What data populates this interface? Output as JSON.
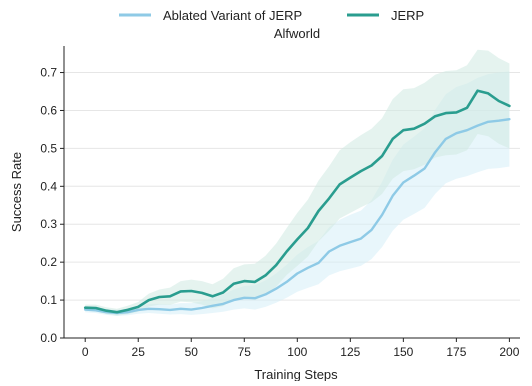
{
  "chart_data": {
    "type": "line",
    "title": "Alfworld",
    "xlabel": "Training Steps",
    "ylabel": "Success Rate",
    "xlim": [
      -10,
      205
    ],
    "ylim": [
      0.0,
      0.77
    ],
    "xticks": [
      "0",
      "25",
      "50",
      "75",
      "100",
      "125",
      "150",
      "175",
      "200"
    ],
    "yticks": [
      "0.0",
      "0.1",
      "0.2",
      "0.3",
      "0.4",
      "0.5",
      "0.6",
      "0.7"
    ],
    "grid": "horizontal",
    "legend_position": "top-center",
    "x": [
      0,
      5,
      10,
      15,
      20,
      25,
      30,
      35,
      40,
      45,
      50,
      55,
      60,
      65,
      70,
      75,
      80,
      85,
      90,
      95,
      100,
      105,
      110,
      115,
      120,
      125,
      130,
      135,
      140,
      145,
      150,
      155,
      160,
      165,
      170,
      175,
      180,
      185,
      190,
      195,
      200
    ],
    "series": [
      {
        "name": "Ablated Variant of JERP",
        "color": "#8ecae6",
        "band_color": "#d6eef8",
        "values": [
          0.075,
          0.073,
          0.068,
          0.066,
          0.068,
          0.074,
          0.077,
          0.076,
          0.074,
          0.077,
          0.075,
          0.079,
          0.085,
          0.09,
          0.1,
          0.106,
          0.105,
          0.115,
          0.13,
          0.148,
          0.17,
          0.185,
          0.198,
          0.228,
          0.243,
          0.253,
          0.262,
          0.285,
          0.325,
          0.375,
          0.41,
          0.428,
          0.447,
          0.49,
          0.525,
          0.54,
          0.548,
          0.56,
          0.57,
          0.573,
          0.577
        ],
        "lower": [
          0.068,
          0.066,
          0.061,
          0.058,
          0.06,
          0.064,
          0.066,
          0.064,
          0.062,
          0.063,
          0.061,
          0.063,
          0.066,
          0.069,
          0.075,
          0.078,
          0.075,
          0.082,
          0.093,
          0.106,
          0.122,
          0.132,
          0.142,
          0.165,
          0.176,
          0.183,
          0.19,
          0.208,
          0.24,
          0.283,
          0.312,
          0.327,
          0.343,
          0.38,
          0.408,
          0.42,
          0.427,
          0.437,
          0.446,
          0.448,
          0.452
        ],
        "upper": [
          0.082,
          0.081,
          0.076,
          0.075,
          0.077,
          0.085,
          0.09,
          0.09,
          0.088,
          0.092,
          0.092,
          0.097,
          0.106,
          0.114,
          0.128,
          0.137,
          0.139,
          0.152,
          0.17,
          0.193,
          0.22,
          0.24,
          0.256,
          0.292,
          0.312,
          0.325,
          0.336,
          0.363,
          0.412,
          0.47,
          0.51,
          0.531,
          0.553,
          0.602,
          0.643,
          0.662,
          0.671,
          0.686,
          0.696,
          0.7,
          0.703
        ]
      },
      {
        "name": "JERP",
        "color": "#2a9d8f",
        "band_color": "#cfe9e2",
        "values": [
          0.08,
          0.079,
          0.072,
          0.068,
          0.074,
          0.082,
          0.1,
          0.108,
          0.11,
          0.123,
          0.124,
          0.119,
          0.11,
          0.12,
          0.143,
          0.15,
          0.148,
          0.165,
          0.192,
          0.228,
          0.26,
          0.29,
          0.335,
          0.368,
          0.405,
          0.423,
          0.44,
          0.455,
          0.48,
          0.525,
          0.548,
          0.552,
          0.565,
          0.585,
          0.593,
          0.595,
          0.607,
          0.652,
          0.645,
          0.625,
          0.612
        ],
        "lower": [
          0.072,
          0.07,
          0.063,
          0.059,
          0.063,
          0.069,
          0.083,
          0.088,
          0.087,
          0.096,
          0.094,
          0.088,
          0.078,
          0.084,
          0.102,
          0.106,
          0.1,
          0.113,
          0.135,
          0.166,
          0.19,
          0.215,
          0.255,
          0.283,
          0.315,
          0.33,
          0.345,
          0.358,
          0.38,
          0.42,
          0.44,
          0.445,
          0.457,
          0.476,
          0.482,
          0.484,
          0.495,
          0.538,
          0.532,
          0.512,
          0.5
        ],
        "upper": [
          0.088,
          0.088,
          0.081,
          0.077,
          0.085,
          0.095,
          0.117,
          0.128,
          0.133,
          0.15,
          0.154,
          0.15,
          0.142,
          0.156,
          0.184,
          0.194,
          0.196,
          0.217,
          0.249,
          0.29,
          0.33,
          0.365,
          0.415,
          0.453,
          0.495,
          0.516,
          0.535,
          0.552,
          0.58,
          0.63,
          0.656,
          0.659,
          0.673,
          0.694,
          0.704,
          0.706,
          0.719,
          0.76,
          0.758,
          0.738,
          0.724
        ]
      }
    ]
  }
}
